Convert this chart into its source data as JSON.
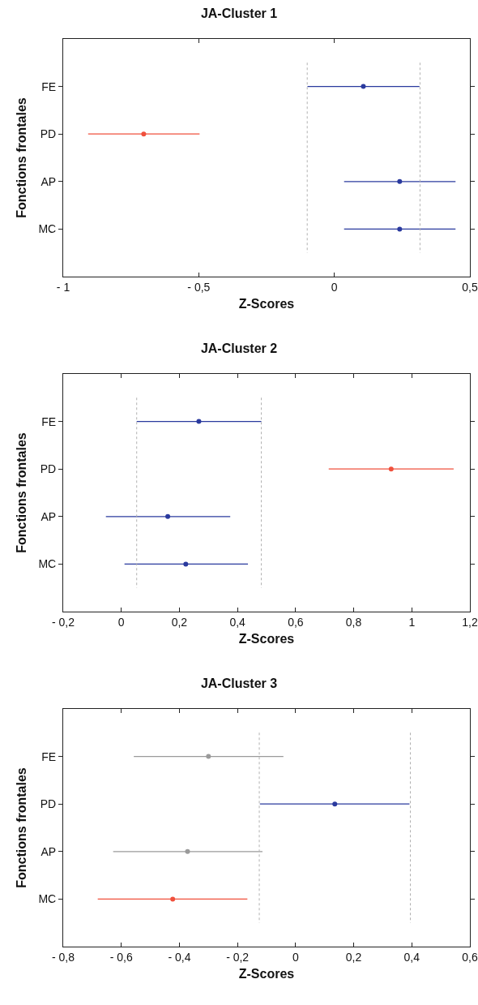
{
  "chart_data": [
    {
      "type": "scatter",
      "title": "JA-Cluster 1",
      "xlabel": "Z-Scores",
      "ylabel": "Fonctions frontales",
      "orientation": "horizontal",
      "categories": [
        "FE",
        "PD",
        "AP",
        "MC"
      ],
      "values": [
        0.107,
        -0.703,
        0.241,
        0.241
      ],
      "errors": [
        [
          -0.099,
          0.314
        ],
        [
          -0.908,
          -0.497
        ],
        [
          0.036,
          0.447
        ],
        [
          0.036,
          0.447
        ]
      ],
      "colors": [
        "#2a3a9e",
        "#f0503c",
        "#2a3a9e",
        "#2a3a9e"
      ],
      "xlim": [
        -1,
        0.5
      ],
      "xticks": [
        {
          "value": -1,
          "label": "- 1"
        },
        {
          "value": -0.5,
          "label": "- 0,5"
        },
        {
          "value": 0,
          "label": "0"
        },
        {
          "value": 0.5,
          "label": "0,5"
        }
      ],
      "ref_lines": [
        {
          "axis": "x",
          "value": -0.1,
          "color": "#b0b0b0",
          "line_style": "dotted"
        },
        {
          "axis": "x",
          "value": 0.316,
          "color": "#b0b0b0",
          "line_style": "dotted"
        }
      ],
      "marker": "circle",
      "grid": false
    },
    {
      "type": "scatter",
      "title": "JA-Cluster 2",
      "xlabel": "Z-Scores",
      "ylabel": "Fonctions frontales",
      "orientation": "horizontal",
      "categories": [
        "FE",
        "PD",
        "AP",
        "MC"
      ],
      "values": [
        0.267,
        0.929,
        0.16,
        0.222
      ],
      "errors": [
        [
          0.053,
          0.482
        ],
        [
          0.714,
          1.144
        ],
        [
          -0.053,
          0.375
        ],
        [
          0.011,
          0.436
        ]
      ],
      "colors": [
        "#2a3a9e",
        "#f0503c",
        "#2a3a9e",
        "#2a3a9e"
      ],
      "xlim": [
        -0.2,
        1.2
      ],
      "xticks": [
        {
          "value": -0.2,
          "label": "- 0,2"
        },
        {
          "value": 0,
          "label": "0"
        },
        {
          "value": 0.2,
          "label": "0,2"
        },
        {
          "value": 0.4,
          "label": "0,4"
        },
        {
          "value": 0.6,
          "label": "0,6"
        },
        {
          "value": 0.8,
          "label": "0,8"
        },
        {
          "value": 1,
          "label": "1"
        },
        {
          "value": 1.2,
          "label": "1,2"
        }
      ],
      "ref_lines": [
        {
          "axis": "x",
          "value": 0.053,
          "color": "#b0b0b0",
          "line_style": "dotted"
        },
        {
          "axis": "x",
          "value": 0.482,
          "color": "#b0b0b0",
          "line_style": "dotted"
        }
      ],
      "marker": "circle",
      "grid": false
    },
    {
      "type": "scatter",
      "title": "JA-Cluster 3",
      "xlabel": "Z-Scores",
      "ylabel": "Fonctions frontales",
      "orientation": "horizontal",
      "categories": [
        "FE",
        "PD",
        "AP",
        "MC"
      ],
      "values": [
        -0.3,
        0.135,
        -0.372,
        -0.423
      ],
      "errors": [
        [
          -0.557,
          -0.042
        ],
        [
          -0.123,
          0.392
        ],
        [
          -0.628,
          -0.114
        ],
        [
          -0.681,
          -0.166
        ]
      ],
      "colors": [
        "#9a9a9a",
        "#2a3a9e",
        "#9a9a9a",
        "#f0503c"
      ],
      "xlim": [
        -0.8,
        0.6
      ],
      "xticks": [
        {
          "value": -0.8,
          "label": "- 0,8"
        },
        {
          "value": -0.6,
          "label": "- 0,6"
        },
        {
          "value": -0.4,
          "label": "- 0,4"
        },
        {
          "value": -0.2,
          "label": "- 0,2"
        },
        {
          "value": 0,
          "label": "0"
        },
        {
          "value": 0.2,
          "label": "0,2"
        },
        {
          "value": 0.4,
          "label": "0,4"
        },
        {
          "value": 0.6,
          "label": "0,6"
        }
      ],
      "ref_lines": [
        {
          "axis": "x",
          "value": -0.125,
          "color": "#b0b0b0",
          "line_style": "dotted"
        },
        {
          "axis": "x",
          "value": 0.395,
          "color": "#b0b0b0",
          "line_style": "dotted"
        }
      ],
      "marker": "circle",
      "grid": false
    }
  ]
}
